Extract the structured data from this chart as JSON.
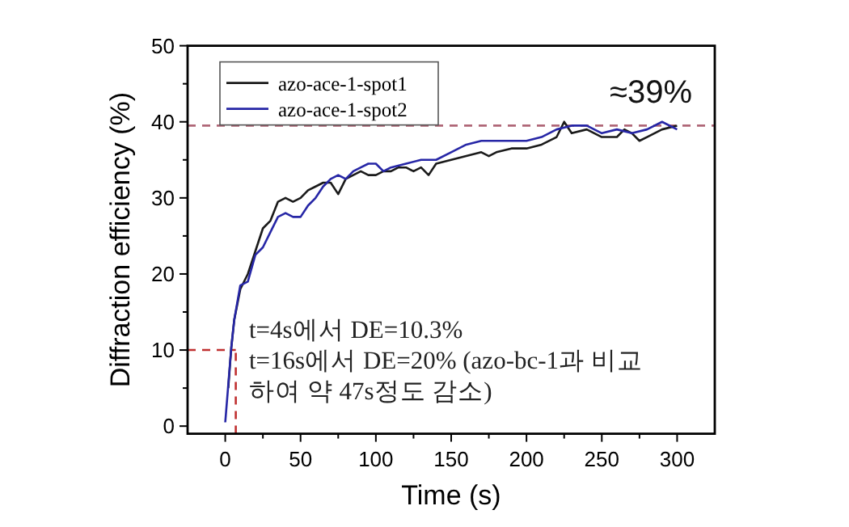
{
  "chart_data": {
    "type": "line",
    "xlabel": "Time (s)",
    "ylabel": "Diffraction efficiency (%)",
    "xlim": [
      -25,
      325
    ],
    "ylim": [
      -1,
      50
    ],
    "xticks": [
      0,
      {
        "value": 25,
        "label": null
      },
      50,
      {
        "value": 75,
        "label": null
      },
      100,
      {
        "value": 125,
        "label": null
      },
      150,
      {
        "value": 175,
        "label": null
      },
      200,
      {
        "value": 225,
        "label": null
      },
      250,
      {
        "value": 275,
        "label": null
      },
      300
    ],
    "yticks": [
      0,
      {
        "value": 5,
        "label": null
      },
      10,
      {
        "value": 15,
        "label": null
      },
      20,
      {
        "value": 25,
        "label": null
      },
      30,
      {
        "value": 35,
        "label": null
      },
      40,
      {
        "value": 45,
        "label": null
      },
      50
    ],
    "legend": "top left",
    "grid": false,
    "marker": "none",
    "line_style": "solid",
    "series": [
      {
        "name": "azo-ace-1-spot1",
        "color": "#1a1a1a",
        "x": [
          2,
          4,
          6,
          10,
          15,
          20,
          25,
          30,
          35,
          40,
          45,
          50,
          55,
          60,
          65,
          70,
          75,
          80,
          85,
          90,
          95,
          100,
          105,
          110,
          115,
          120,
          125,
          130,
          135,
          140,
          150,
          160,
          170,
          175,
          180,
          190,
          200,
          210,
          220,
          225,
          230,
          240,
          250,
          260,
          265,
          270,
          275,
          280,
          290,
          300
        ],
        "values": [
          5,
          10.3,
          14,
          18,
          20,
          23,
          26,
          27,
          29.5,
          30,
          29.5,
          30,
          31,
          31.5,
          32,
          32,
          30.5,
          32.5,
          33,
          33.5,
          33,
          33,
          33.5,
          33.5,
          34,
          34,
          33.5,
          34,
          33,
          34.5,
          35,
          35.5,
          36,
          35.5,
          36,
          36.5,
          36.5,
          37,
          38,
          40,
          38.5,
          39,
          38,
          38,
          39,
          38.5,
          37.5,
          38,
          39,
          39.5
        ]
      },
      {
        "name": "azo-ace-1-spot2",
        "color": "#2626a6",
        "x": [
          0,
          4,
          6,
          10,
          15,
          20,
          25,
          30,
          35,
          40,
          45,
          50,
          55,
          60,
          65,
          70,
          75,
          80,
          85,
          90,
          95,
          100,
          105,
          110,
          120,
          130,
          140,
          150,
          160,
          170,
          180,
          190,
          200,
          210,
          220,
          230,
          240,
          250,
          260,
          270,
          280,
          290,
          300
        ],
        "values": [
          0.5,
          10.3,
          14,
          18.5,
          19,
          22.5,
          23.5,
          25.5,
          27.5,
          28,
          27.5,
          27.5,
          29,
          30,
          31.5,
          32.5,
          33,
          32.5,
          33.5,
          34,
          34.5,
          34.5,
          33.5,
          34,
          34.5,
          35,
          35,
          36,
          37,
          37.5,
          37.5,
          37.5,
          37.5,
          38,
          39,
          39.5,
          39.5,
          38.5,
          39,
          38.5,
          39,
          40,
          39
        ]
      }
    ],
    "ref_lines": [
      {
        "axis": "y",
        "value": 39.5,
        "label": "≈39%",
        "color": "#b06878",
        "line_style": "dashed"
      },
      {
        "axis": "y",
        "value": 10,
        "color": "#c03030",
        "line_style": "dashed"
      },
      {
        "axis": "x",
        "value": 7,
        "color": "#c03030",
        "line_style": "dashed"
      }
    ],
    "annotations": [
      "t=4s에서 DE=10.3%",
      "t=16s에서 DE=20% (azo-bc-1과 비교",
      "하여 약 47s정도 감소)"
    ]
  }
}
